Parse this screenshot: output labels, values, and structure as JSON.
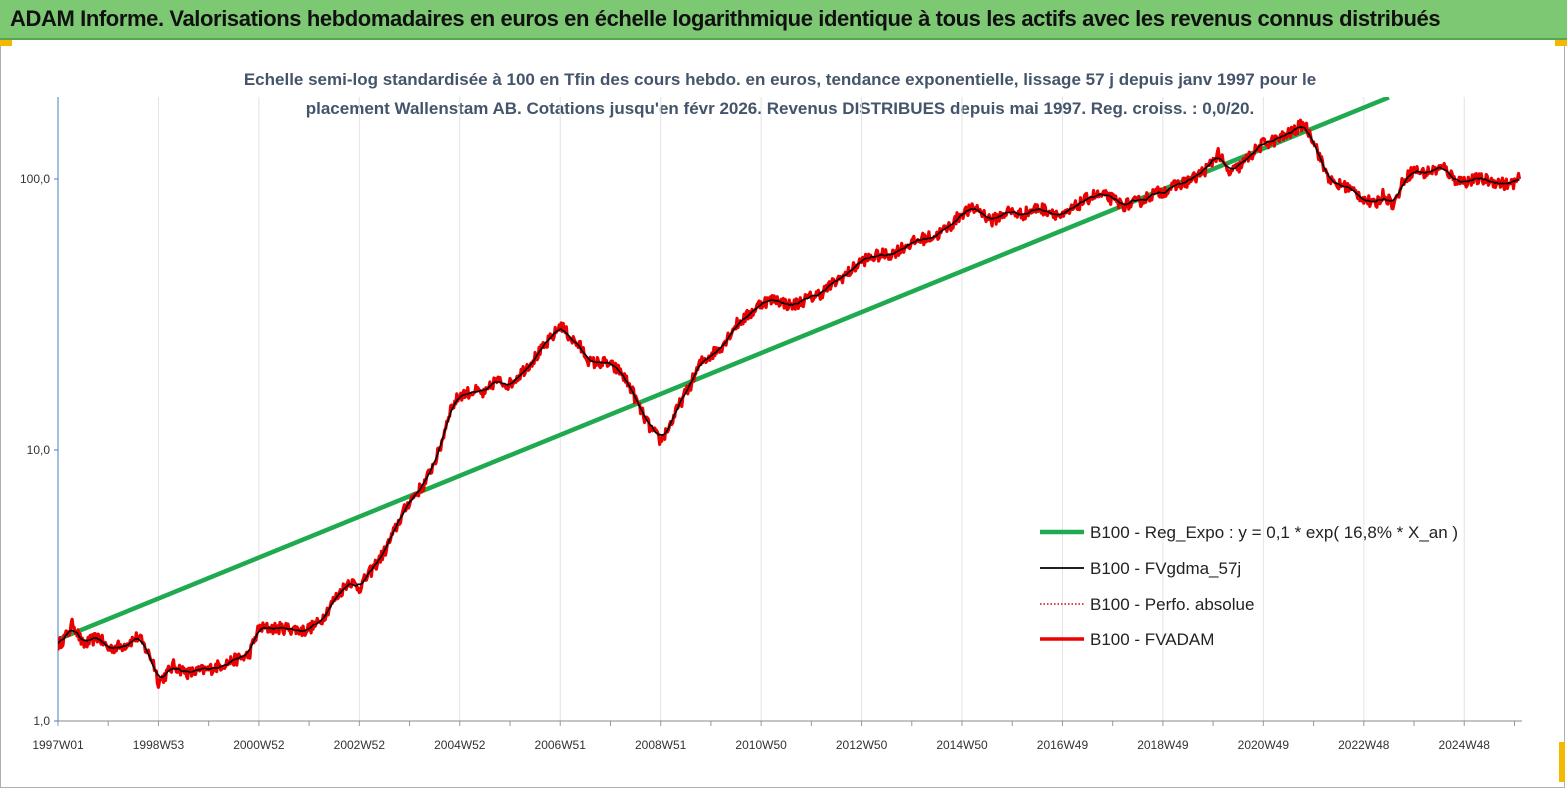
{
  "banner": {
    "text": "ADAM Informe. Valorisations hebdomadaires en euros en échelle logarithmique identique à tous les actifs avec les revenus connus distribués",
    "color": "#7dc873"
  },
  "chart_data": {
    "type": "line",
    "title": "Echelle semi-log standardisée à 100 en Tfin des cours hebdo. en euros, tendance exponentielle, lissage 57 j depuis janv 1997 pour le placement Wallenstam AB. Cotations jusqu'en févr 2026. Revenus DISTRIBUES depuis mai 1997. Reg. croiss. : 0,0/20.",
    "title_lines": [
      "Echelle semi-log standardisée à 100 en Tfin des cours hebdo. en euros, tendance exponentielle, lissage 57 j depuis janv 1997 pour le",
      "placement Wallenstam AB. Cotations jusqu'en févr 2026. Revenus DISTRIBUES depuis mai 1997. Reg. croiss. : 0,0/20."
    ],
    "y_scale": "log",
    "ylim": [
      1,
      200
    ],
    "y_ticks": [
      {
        "value": 1,
        "label": "1,0"
      },
      {
        "value": 10,
        "label": "10,0"
      },
      {
        "value": 100,
        "label": "100,0"
      }
    ],
    "x_range": [
      1997.0,
      2026.15
    ],
    "x_ticks": [
      {
        "label": "1997W01",
        "t": 1997.0
      },
      {
        "label": "1998W53",
        "t": 1999.0
      },
      {
        "label": "2000W52",
        "t": 2001.0
      },
      {
        "label": "2002W52",
        "t": 2003.0
      },
      {
        "label": "2004W52",
        "t": 2005.0
      },
      {
        "label": "2006W51",
        "t": 2007.0
      },
      {
        "label": "2008W51",
        "t": 2009.0
      },
      {
        "label": "2010W50",
        "t": 2011.0
      },
      {
        "label": "2012W50",
        "t": 2013.0
      },
      {
        "label": "2014W50",
        "t": 2015.0
      },
      {
        "label": "2016W49",
        "t": 2017.0
      },
      {
        "label": "2018W49",
        "t": 2019.0
      },
      {
        "label": "2020W49",
        "t": 2021.0
      },
      {
        "label": "2022W48",
        "t": 2023.0
      },
      {
        "label": "2024W48",
        "t": 2025.0
      }
    ],
    "grid": "vertical",
    "legend_position": "bottom-right",
    "series": [
      {
        "name": "B100 - Reg_Expo : y = 0,1 * exp( 16,8% *  X_an )",
        "color": "#1faa50",
        "style": "solid-thick",
        "points": [
          [
            1997.0,
            2.0
          ],
          [
            2023.5,
            200.0
          ]
        ]
      },
      {
        "name": "B100 - FVgdma_57j",
        "color": "#000000",
        "style": "solid",
        "points": []
      },
      {
        "name": "B100 - Perfo. absolue",
        "color": "#e00000",
        "style": "dotted",
        "points": []
      },
      {
        "name": "B100 - FVADAM",
        "color": "#ee0000",
        "style": "solid-thick",
        "points": [
          [
            1997.0,
            1.9
          ],
          [
            1997.2,
            2.1
          ],
          [
            1997.3,
            2.3
          ],
          [
            1997.5,
            1.9
          ],
          [
            1997.8,
            2.05
          ],
          [
            1998.0,
            1.85
          ],
          [
            1998.3,
            1.9
          ],
          [
            1998.6,
            2.05
          ],
          [
            1998.9,
            1.65
          ],
          [
            1999.0,
            1.4
          ],
          [
            1999.1,
            1.45
          ],
          [
            1999.3,
            1.6
          ],
          [
            1999.6,
            1.5
          ],
          [
            2000.0,
            1.55
          ],
          [
            2000.4,
            1.65
          ],
          [
            2000.8,
            1.75
          ],
          [
            2001.0,
            2.2
          ],
          [
            2001.3,
            2.2
          ],
          [
            2001.6,
            2.2
          ],
          [
            2001.9,
            2.15
          ],
          [
            2002.2,
            2.3
          ],
          [
            2002.5,
            2.8
          ],
          [
            2002.8,
            3.3
          ],
          [
            2003.0,
            3.1
          ],
          [
            2003.2,
            3.5
          ],
          [
            2003.5,
            4.2
          ],
          [
            2003.8,
            5.5
          ],
          [
            2004.0,
            6.5
          ],
          [
            2004.3,
            7.5
          ],
          [
            2004.6,
            10.0
          ],
          [
            2004.8,
            14.0
          ],
          [
            2005.0,
            16.0
          ],
          [
            2005.3,
            16.5
          ],
          [
            2005.5,
            16.0
          ],
          [
            2005.7,
            18.0
          ],
          [
            2006.0,
            17.5
          ],
          [
            2006.3,
            20.0
          ],
          [
            2006.6,
            23.0
          ],
          [
            2006.9,
            27.0
          ],
          [
            2007.0,
            29.0
          ],
          [
            2007.2,
            26.0
          ],
          [
            2007.4,
            24.0
          ],
          [
            2007.6,
            21.0
          ],
          [
            2007.9,
            21.0
          ],
          [
            2008.2,
            19.5
          ],
          [
            2008.4,
            17.0
          ],
          [
            2008.6,
            14.0
          ],
          [
            2008.8,
            12.0
          ],
          [
            2009.0,
            10.8
          ],
          [
            2009.2,
            12.5
          ],
          [
            2009.4,
            15.0
          ],
          [
            2009.6,
            17.5
          ],
          [
            2009.8,
            21.0
          ],
          [
            2010.2,
            24.0
          ],
          [
            2010.5,
            29.0
          ],
          [
            2010.8,
            32.0
          ],
          [
            2011.0,
            35.0
          ],
          [
            2011.3,
            36.0
          ],
          [
            2011.6,
            34.0
          ],
          [
            2011.9,
            36.0
          ],
          [
            2012.2,
            38.0
          ],
          [
            2012.5,
            42.0
          ],
          [
            2012.8,
            46.0
          ],
          [
            2013.0,
            50.0
          ],
          [
            2013.3,
            52.0
          ],
          [
            2013.6,
            53.0
          ],
          [
            2013.9,
            57.0
          ],
          [
            2014.2,
            60.0
          ],
          [
            2014.5,
            62.0
          ],
          [
            2014.8,
            68.0
          ],
          [
            2015.0,
            75.0
          ],
          [
            2015.3,
            78.0
          ],
          [
            2015.6,
            70.0
          ],
          [
            2015.9,
            76.0
          ],
          [
            2016.2,
            74.0
          ],
          [
            2016.5,
            78.0
          ],
          [
            2016.8,
            76.0
          ],
          [
            2017.0,
            72.0
          ],
          [
            2017.3,
            80.0
          ],
          [
            2017.6,
            87.0
          ],
          [
            2017.9,
            86.0
          ],
          [
            2018.2,
            80.0
          ],
          [
            2018.5,
            82.0
          ],
          [
            2018.8,
            88.0
          ],
          [
            2019.0,
            90.0
          ],
          [
            2019.3,
            95.0
          ],
          [
            2019.6,
            100.0
          ],
          [
            2019.9,
            110.0
          ],
          [
            2020.1,
            125.0
          ],
          [
            2020.3,
            105.0
          ],
          [
            2020.5,
            110.0
          ],
          [
            2020.8,
            125.0
          ],
          [
            2021.0,
            135.0
          ],
          [
            2021.3,
            140.0
          ],
          [
            2021.6,
            150.0
          ],
          [
            2021.8,
            160.0
          ],
          [
            2022.0,
            140.0
          ],
          [
            2022.2,
            110.0
          ],
          [
            2022.4,
            95.0
          ],
          [
            2022.6,
            95.0
          ],
          [
            2022.8,
            90.0
          ],
          [
            2023.0,
            85.0
          ],
          [
            2023.2,
            80.0
          ],
          [
            2023.4,
            88.0
          ],
          [
            2023.6,
            80.0
          ],
          [
            2023.8,
            100.0
          ],
          [
            2024.0,
            108.0
          ],
          [
            2024.2,
            105.0
          ],
          [
            2024.4,
            108.0
          ],
          [
            2024.6,
            110.0
          ],
          [
            2024.8,
            100.0
          ],
          [
            2025.0,
            98.0
          ],
          [
            2025.3,
            100.0
          ],
          [
            2025.6,
            98.0
          ],
          [
            2025.9,
            95.0
          ],
          [
            2026.1,
            100.0
          ]
        ]
      }
    ]
  }
}
